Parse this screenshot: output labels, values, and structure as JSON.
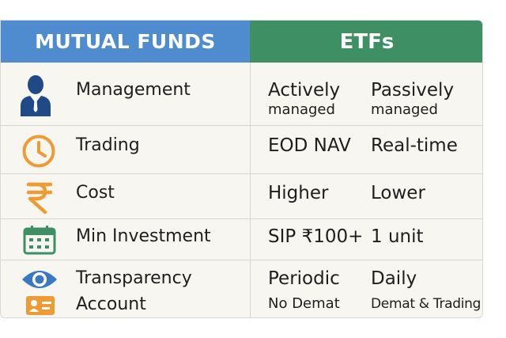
{
  "header": {
    "left_title": "MUTUAL FUNDS",
    "right_title": "ETFs"
  },
  "colors": {
    "mutual_funds_header": "#4f8ccf",
    "etf_header": "#3e8f63",
    "icon_blue": "#1f4a86",
    "icon_orange": "#ef9a32",
    "icon_green": "#3e8f63",
    "icon_eye": "#3a78c2"
  },
  "rows": [
    {
      "icon": "businessman-icon",
      "label": "Management",
      "mf_value": "Actively",
      "mf_sub": "managed",
      "etf_value": "Passively",
      "etf_sub": "managed"
    },
    {
      "icon": "clock-icon",
      "label": "Trading",
      "mf_value": "EOD NAV",
      "etf_value": "Real-time"
    },
    {
      "icon": "rupee-icon",
      "label": "Cost",
      "mf_value": "Higher",
      "etf_value": "Lower"
    },
    {
      "icon": "calendar-icon",
      "label": "Min Investment",
      "mf_value": "SIP ₹100+",
      "etf_value": "1 unit"
    },
    {
      "icon": "eye-icon",
      "label": "Transparency",
      "mf_value": "Periodic",
      "etf_value": "Daily"
    },
    {
      "icon": "id-card-icon",
      "label": "Account",
      "mf_value": "No Demat",
      "etf_value": "Demat & Trading"
    }
  ]
}
